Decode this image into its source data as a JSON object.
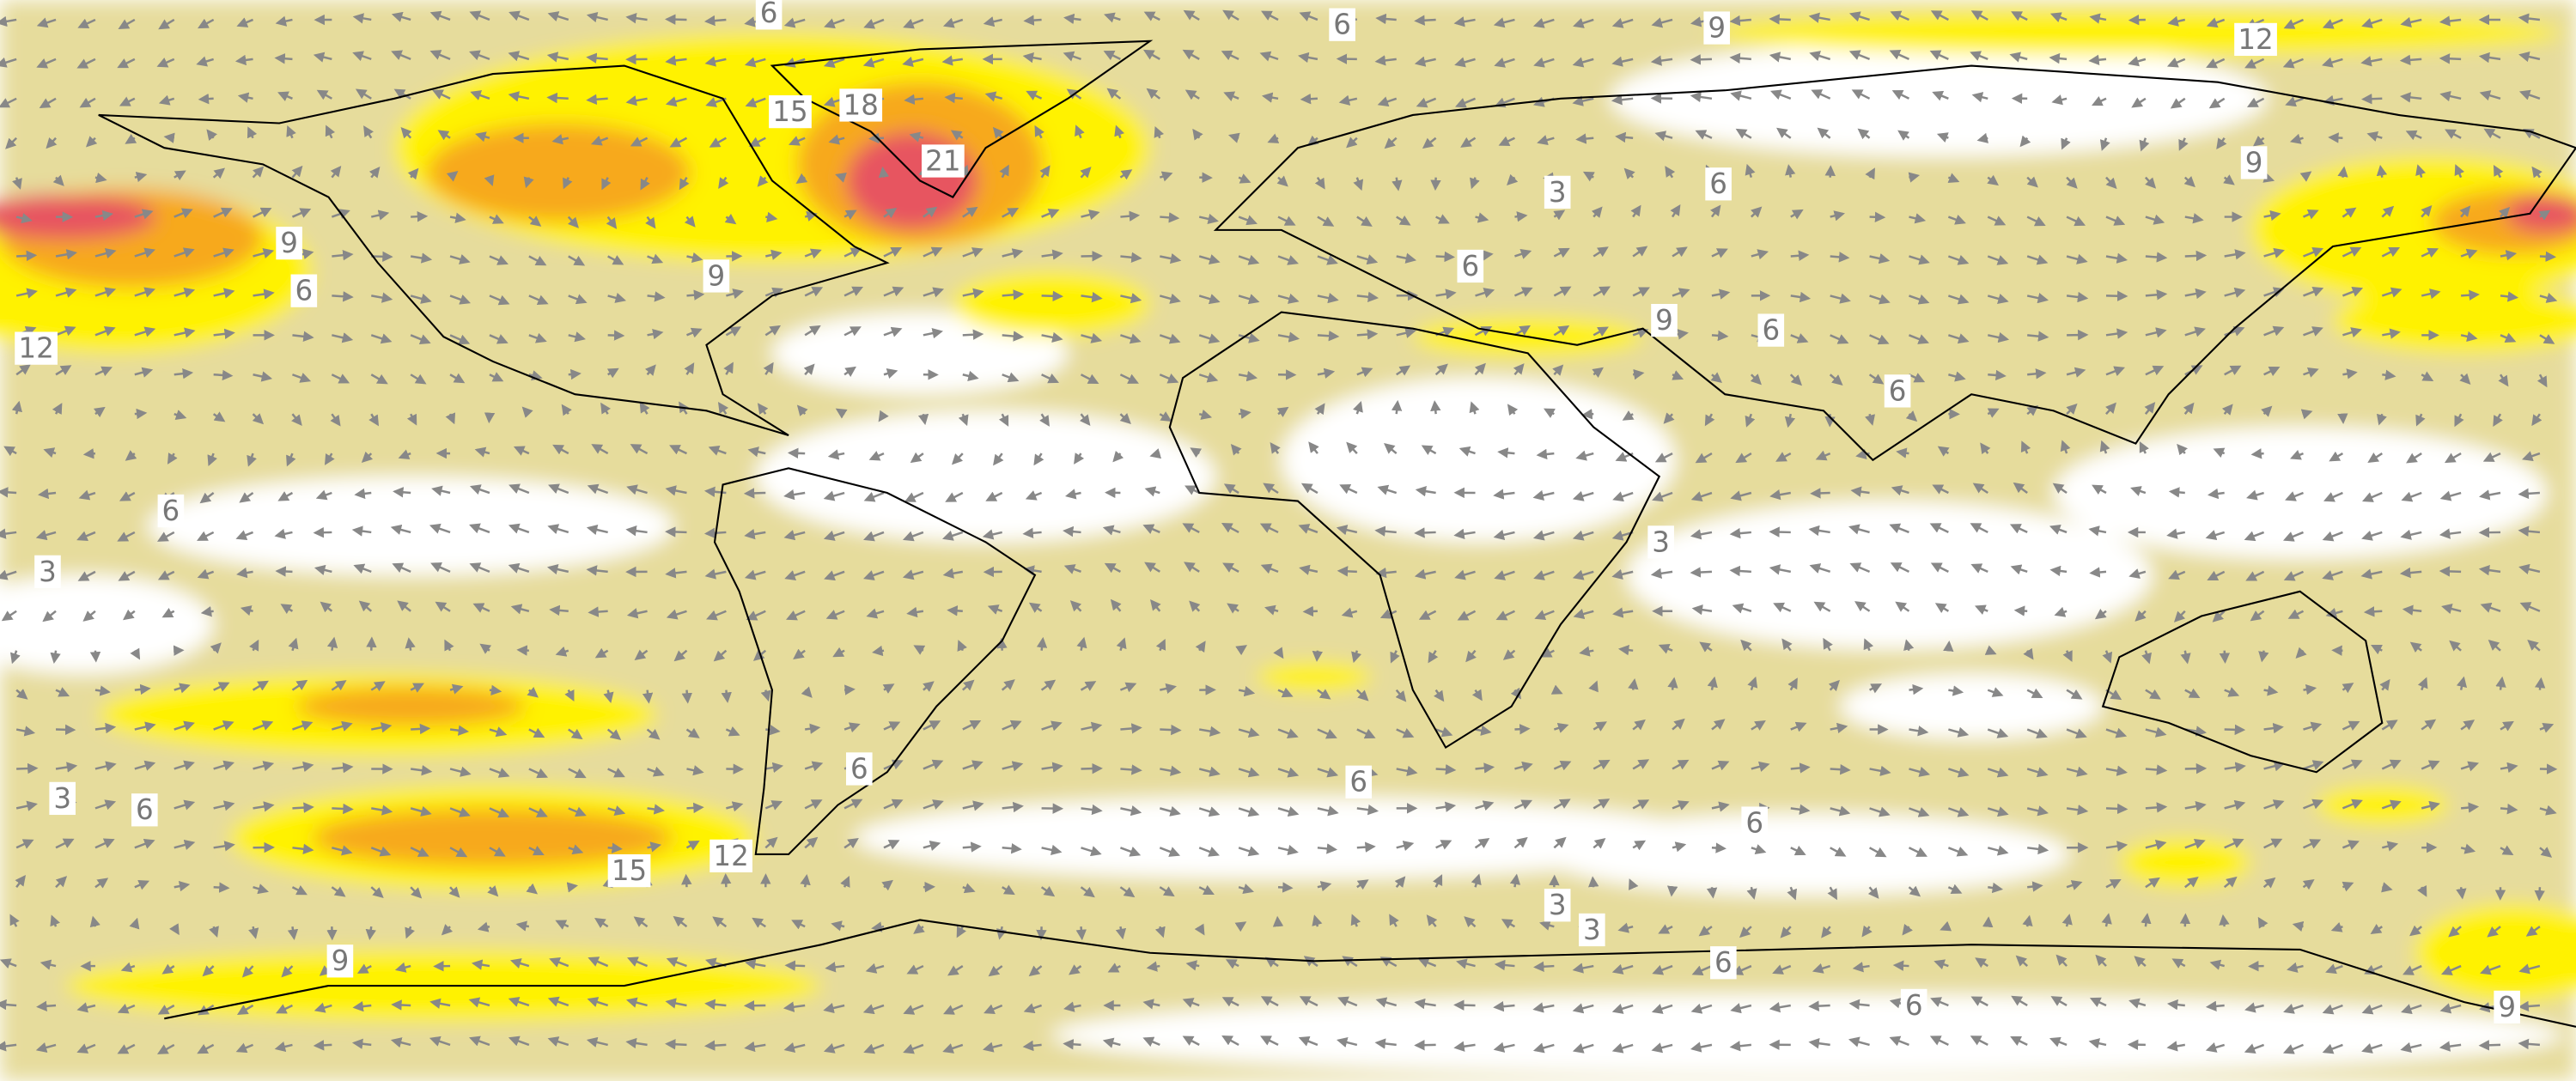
{
  "contour_labels": [
    6,
    6,
    9,
    12,
    15,
    18,
    21,
    9,
    9,
    6,
    12,
    9,
    3,
    6,
    6,
    9,
    6,
    6,
    6,
    3,
    3,
    6,
    6,
    3,
    6,
    6,
    15,
    12,
    3,
    3,
    9,
    6,
    6,
    9
  ]
}
